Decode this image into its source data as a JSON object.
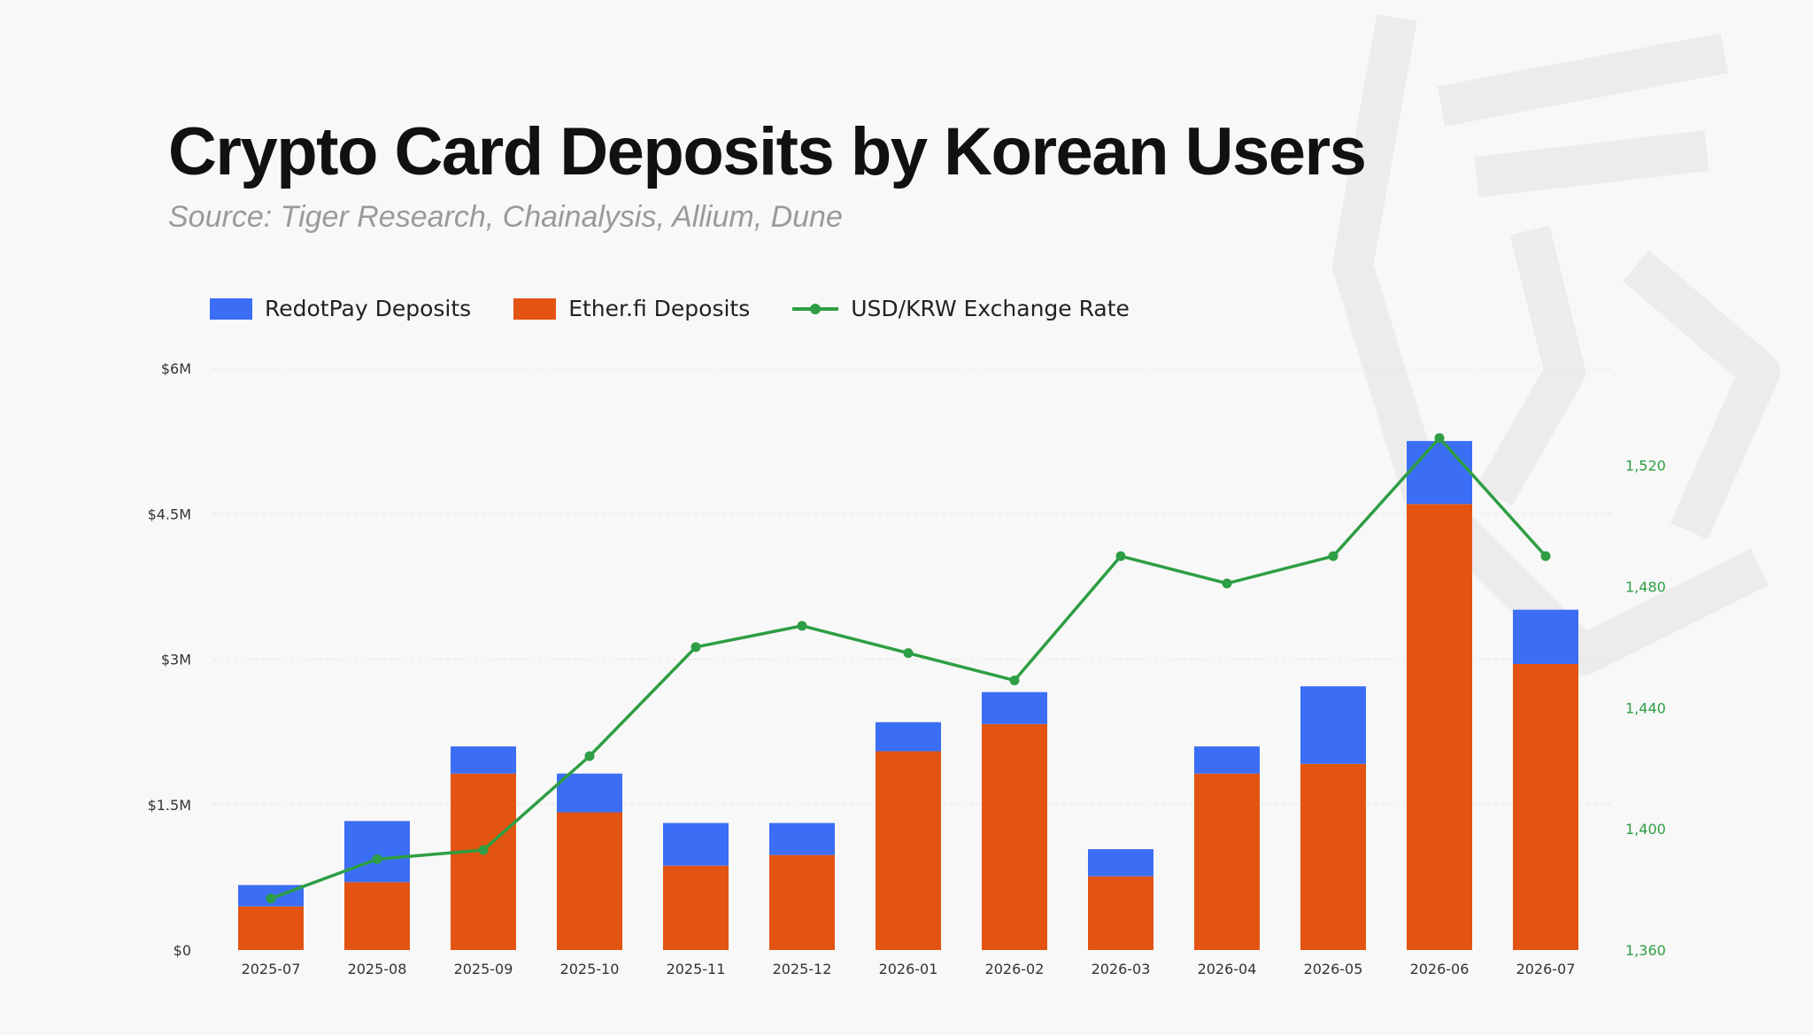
{
  "title": "Crypto Card Deposits by Korean Users",
  "subtitle": "Source: Tiger Research, Chainalysis, Allium, Dune",
  "colors": {
    "redotpay": "#3b6ef5",
    "etherfi": "#e35413",
    "line": "#2e9e44",
    "grid": "#e6e6e6",
    "axis_text": "#333333",
    "right_axis_text": "#2e9e44"
  },
  "legend": {
    "redotpay": "RedotPay Deposits",
    "etherfi": "Ether.fi Deposits",
    "rate": "USD/KRW Exchange Rate"
  },
  "chart_data": {
    "type": "bar",
    "stacked": true,
    "categories": [
      "2025-07",
      "2025-08",
      "2025-09",
      "2025-10",
      "2025-11",
      "2025-12",
      "2026-01",
      "2026-02",
      "2026-03",
      "2026-04",
      "2026-05",
      "2026-06",
      "2026-07"
    ],
    "series": [
      {
        "name": "Ether.fi Deposits",
        "values": [
          0.45,
          0.7,
          1.82,
          1.42,
          0.87,
          0.98,
          2.05,
          2.33,
          0.76,
          1.82,
          1.92,
          4.6,
          2.95
        ]
      },
      {
        "name": "RedotPay Deposits",
        "values": [
          0.22,
          0.63,
          0.28,
          0.4,
          0.44,
          0.33,
          0.3,
          0.33,
          0.28,
          0.28,
          0.8,
          0.65,
          0.56
        ]
      }
    ],
    "line_series": {
      "name": "USD/KRW Exchange Rate",
      "axis": "right",
      "values": [
        1377,
        1390,
        1393,
        1424,
        1460,
        1467,
        1458,
        1449,
        1490,
        1481,
        1490,
        1529,
        1490
      ]
    },
    "y_left": {
      "ylim": [
        0,
        6
      ],
      "ticks": [
        0,
        1.5,
        3,
        4.5,
        6
      ],
      "tick_labels": [
        "$0",
        "$1.5M",
        "$3M",
        "$4.5M",
        "$6M"
      ]
    },
    "y_right": {
      "ylim": [
        1360,
        1552
      ],
      "ticks": [
        1360,
        1400,
        1440,
        1480,
        1520
      ],
      "tick_labels": [
        "1,360",
        "1,400",
        "1,440",
        "1,480",
        "1,520"
      ]
    },
    "grid": true,
    "legend_position": "top-left"
  }
}
